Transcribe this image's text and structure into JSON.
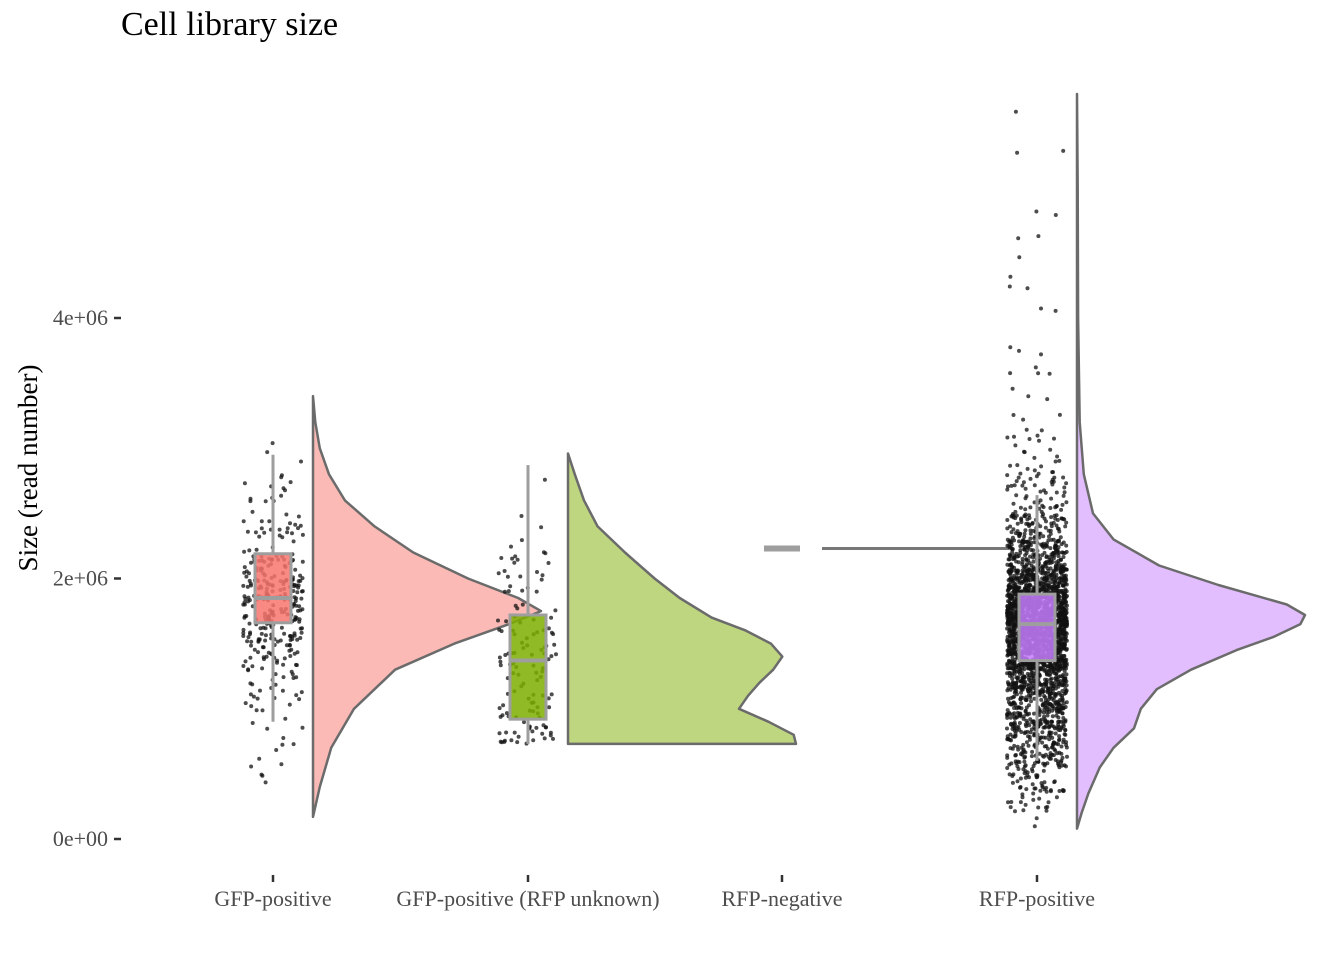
{
  "chart_data": {
    "type": "raincloud",
    "title": "Cell library size",
    "xlabel": "",
    "ylabel": "Size (read number)",
    "ylim": [
      -250000,
      5800000
    ],
    "y_ticks": [
      {
        "value": 0,
        "label": "0e+00"
      },
      {
        "value": 2000000,
        "label": "2e+06"
      },
      {
        "value": 4000000,
        "label": "4e+06"
      }
    ],
    "grid": false,
    "legend": "none",
    "categories": [
      "GFP-positive",
      "GFP-positive (RFP unknown)",
      "RFP-negative",
      "RFP-positive"
    ],
    "series": [
      {
        "category": "GFP-positive",
        "color": "#F8766D",
        "fill": "#FBBAB5",
        "box": {
          "whisker_low": 900000,
          "q1": 1660000,
          "median": 1850000,
          "q3": 2190000,
          "whisker_high": 2950000
        },
        "range": [
          170000,
          3400000
        ],
        "n_points": 320,
        "density": [
          [
            170000,
            0.0
          ],
          [
            400000,
            0.03
          ],
          [
            700000,
            0.08
          ],
          [
            1000000,
            0.18
          ],
          [
            1300000,
            0.36
          ],
          [
            1500000,
            0.62
          ],
          [
            1650000,
            0.86
          ],
          [
            1750000,
            1.0
          ],
          [
            1850000,
            0.9
          ],
          [
            2000000,
            0.68
          ],
          [
            2200000,
            0.44
          ],
          [
            2400000,
            0.27
          ],
          [
            2600000,
            0.14
          ],
          [
            2800000,
            0.07
          ],
          [
            3000000,
            0.03
          ],
          [
            3200000,
            0.01
          ],
          [
            3400000,
            0.0
          ]
        ]
      },
      {
        "category": "GFP-positive (RFP unknown)",
        "color": "#7CAE00",
        "fill": "#BFD680",
        "box": {
          "whisker_low": 730000,
          "q1": 920000,
          "median": 1370000,
          "q3": 1720000,
          "whisker_high": 2870000
        },
        "range": [
          730000,
          2960000
        ],
        "n_points": 130,
        "density": [
          [
            730000,
            1.0
          ],
          [
            800000,
            0.99
          ],
          [
            900000,
            0.88
          ],
          [
            1000000,
            0.75
          ],
          [
            1100000,
            0.79
          ],
          [
            1200000,
            0.84
          ],
          [
            1300000,
            0.9
          ],
          [
            1400000,
            0.94
          ],
          [
            1500000,
            0.89
          ],
          [
            1600000,
            0.78
          ],
          [
            1700000,
            0.63
          ],
          [
            1850000,
            0.49
          ],
          [
            2000000,
            0.38
          ],
          [
            2200000,
            0.25
          ],
          [
            2400000,
            0.13
          ],
          [
            2600000,
            0.07
          ],
          [
            2800000,
            0.03
          ],
          [
            2960000,
            0.0
          ]
        ]
      },
      {
        "category": "RFP-negative",
        "color": "#9e9e9e",
        "fill": "#9e9e9e",
        "single_value": 2230000
      },
      {
        "category": "RFP-positive",
        "color": "#C77CFF",
        "fill": "#E2BEFF",
        "box": {
          "whisker_low": 600000,
          "q1": 1370000,
          "median": 1650000,
          "q3": 1880000,
          "whisker_high": 2640000
        },
        "range": [
          80000,
          5720000
        ],
        "n_points": 2600,
        "density": [
          [
            80000,
            0.0
          ],
          [
            200000,
            0.02
          ],
          [
            350000,
            0.05
          ],
          [
            550000,
            0.1
          ],
          [
            700000,
            0.16
          ],
          [
            850000,
            0.25
          ],
          [
            1000000,
            0.28
          ],
          [
            1150000,
            0.35
          ],
          [
            1300000,
            0.5
          ],
          [
            1450000,
            0.7
          ],
          [
            1550000,
            0.86
          ],
          [
            1650000,
            0.98
          ],
          [
            1720000,
            1.0
          ],
          [
            1800000,
            0.92
          ],
          [
            1950000,
            0.62
          ],
          [
            2100000,
            0.36
          ],
          [
            2300000,
            0.16
          ],
          [
            2500000,
            0.07
          ],
          [
            2800000,
            0.03
          ],
          [
            3200000,
            0.012
          ],
          [
            4000000,
            0.005
          ],
          [
            5000000,
            0.003
          ],
          [
            5720000,
            0.0
          ]
        ]
      }
    ]
  }
}
